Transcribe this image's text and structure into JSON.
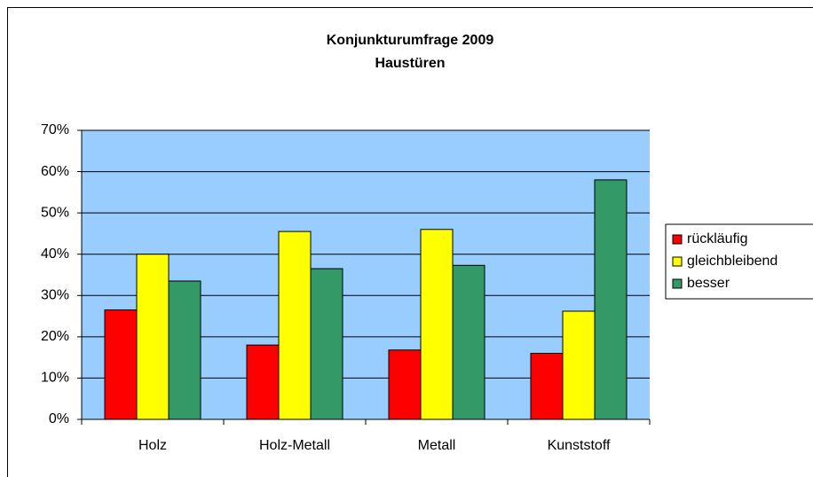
{
  "chart_data": {
    "type": "bar",
    "title": "Konjunkturumfrage 2009",
    "subtitle": "Haustüren",
    "categories": [
      "Holz",
      "Holz-Metall",
      "Metall",
      "Kunststoff"
    ],
    "series": [
      {
        "name": "rückläufig",
        "color": "#ff0000",
        "values": [
          26.5,
          18,
          16.8,
          16
        ]
      },
      {
        "name": "gleichbleibend",
        "color": "#ffff00",
        "values": [
          40,
          45.5,
          46,
          26.2
        ]
      },
      {
        "name": "besser",
        "color": "#339966",
        "values": [
          33.5,
          36.5,
          37.3,
          58
        ]
      }
    ],
    "ylim": [
      0,
      70
    ],
    "yticks": [
      {
        "value": 0,
        "label": "0%"
      },
      {
        "value": 10,
        "label": "10%"
      },
      {
        "value": 20,
        "label": "20%"
      },
      {
        "value": 30,
        "label": "30%"
      },
      {
        "value": 40,
        "label": "40%"
      },
      {
        "value": 50,
        "label": "50%"
      },
      {
        "value": 60,
        "label": "60%"
      },
      {
        "value": 70,
        "label": "70%"
      }
    ],
    "grid": true,
    "background": "#99ccff",
    "legend": "right"
  }
}
